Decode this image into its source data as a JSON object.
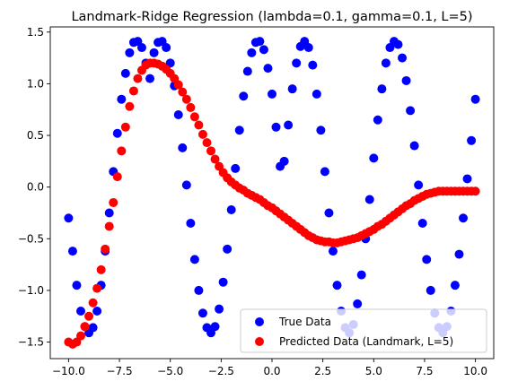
{
  "chart_data": {
    "type": "scatter",
    "title": "Landmark-Ridge Regression (lambda=0.1, gamma=0.1, L=5)",
    "xlabel": "",
    "ylabel": "",
    "xlim": [
      -10.9,
      10.9
    ],
    "ylim": [
      -1.66,
      1.55
    ],
    "xticks": [
      -10.0,
      -7.5,
      -5.0,
      -2.5,
      0.0,
      2.5,
      5.0,
      7.5,
      10.0
    ],
    "xtick_labels": [
      "−10.0",
      "−7.5",
      "−5.0",
      "−2.5",
      "0.0",
      "2.5",
      "5.0",
      "7.5",
      "10.0"
    ],
    "yticks": [
      -1.5,
      -1.0,
      -0.5,
      0.0,
      0.5,
      1.0,
      1.5
    ],
    "ytick_labels": [
      "−1.5",
      "−1.0",
      "−0.5",
      "0.0",
      "0.5",
      "1.0",
      "1.5"
    ],
    "grid": false,
    "legend_position": "lower-right",
    "series": [
      {
        "name": "True Data",
        "color": "#0000ff",
        "x": [
          -10.0,
          -9.8,
          -9.6,
          -9.4,
          -9.2,
          -9.0,
          -8.8,
          -8.6,
          -8.4,
          -8.2,
          -8.0,
          -7.8,
          -7.6,
          -7.4,
          -7.2,
          -7.0,
          -6.8,
          -6.6,
          -6.4,
          -6.2,
          -6.0,
          -5.8,
          -5.6,
          -5.4,
          -5.2,
          -5.0,
          -4.8,
          -4.6,
          -4.4,
          -4.2,
          -4.0,
          -3.8,
          -3.6,
          -3.4,
          -3.2,
          -3.0,
          -2.8,
          -2.6,
          -2.4,
          -2.2,
          -2.0,
          -1.8,
          -1.6,
          -1.4,
          -1.2,
          -1.0,
          -0.8,
          -0.6,
          -0.4,
          -0.2,
          0.0,
          0.2,
          0.4,
          0.6,
          0.8,
          1.0,
          1.2,
          1.4,
          1.6,
          1.8,
          2.0,
          2.2,
          2.4,
          2.6,
          2.8,
          3.0,
          3.2,
          3.4,
          3.6,
          3.8,
          4.0,
          4.2,
          4.4,
          4.6,
          4.8,
          5.0,
          5.2,
          5.4,
          5.6,
          5.8,
          6.0,
          6.2,
          6.4,
          6.6,
          6.8,
          7.0,
          7.2,
          7.4,
          7.6,
          7.8,
          8.0,
          8.2,
          8.4,
          8.6,
          8.8,
          9.0,
          9.2,
          9.4,
          9.6,
          9.8,
          10.0
        ],
        "y": [
          -0.3,
          -0.62,
          -0.95,
          -1.2,
          -1.35,
          -1.41,
          -1.36,
          -1.2,
          -0.95,
          -0.62,
          -0.25,
          0.15,
          0.52,
          0.85,
          1.1,
          1.3,
          1.4,
          1.41,
          1.35,
          1.2,
          1.05,
          1.3,
          1.4,
          1.41,
          1.35,
          1.2,
          0.98,
          0.7,
          0.38,
          0.02,
          -0.35,
          -0.7,
          -1.0,
          -1.22,
          -1.36,
          -1.41,
          -1.35,
          -1.18,
          -0.92,
          -0.6,
          -0.22,
          0.18,
          0.55,
          0.88,
          1.12,
          1.3,
          1.4,
          1.41,
          1.33,
          1.15,
          0.9,
          0.58,
          0.2,
          0.25,
          0.6,
          0.95,
          1.2,
          1.36,
          1.41,
          1.35,
          1.18,
          0.9,
          0.55,
          0.15,
          -0.25,
          -0.62,
          -0.95,
          -1.2,
          -1.36,
          -1.41,
          -1.33,
          -1.13,
          -0.85,
          -0.5,
          -0.12,
          0.28,
          0.65,
          0.95,
          1.2,
          1.35,
          1.41,
          1.38,
          1.25,
          1.03,
          0.74,
          0.4,
          0.02,
          -0.35,
          -0.7,
          -1.0,
          -1.22,
          -1.36,
          -1.41,
          -1.35,
          -1.2,
          -0.95,
          -0.65,
          -0.3,
          0.08,
          0.45,
          0.85
        ]
      },
      {
        "name": "Predicted Data (Landmark, L=5)",
        "color": "#ff0000",
        "x": [
          -10.0,
          -9.8,
          -9.6,
          -9.4,
          -9.2,
          -9.0,
          -8.8,
          -8.6,
          -8.4,
          -8.2,
          -8.0,
          -7.8,
          -7.6,
          -7.4,
          -7.2,
          -7.0,
          -6.8,
          -6.6,
          -6.4,
          -6.2,
          -6.0,
          -5.8,
          -5.6,
          -5.4,
          -5.2,
          -5.0,
          -4.8,
          -4.6,
          -4.4,
          -4.2,
          -4.0,
          -3.8,
          -3.6,
          -3.4,
          -3.2,
          -3.0,
          -2.8,
          -2.6,
          -2.4,
          -2.2,
          -2.0,
          -1.8,
          -1.6,
          -1.4,
          -1.2,
          -1.0,
          -0.8,
          -0.6,
          -0.4,
          -0.2,
          0.0,
          0.2,
          0.4,
          0.6,
          0.8,
          1.0,
          1.2,
          1.4,
          1.6,
          1.8,
          2.0,
          2.2,
          2.4,
          2.6,
          2.8,
          3.0,
          3.2,
          3.4,
          3.6,
          3.8,
          4.0,
          4.2,
          4.4,
          4.6,
          4.8,
          5.0,
          5.2,
          5.4,
          5.6,
          5.8,
          6.0,
          6.2,
          6.4,
          6.6,
          6.8,
          7.0,
          7.2,
          7.4,
          7.6,
          7.8,
          8.0,
          8.2,
          8.4,
          8.6,
          8.8,
          9.0,
          9.2,
          9.4,
          9.6,
          9.8,
          10.0
        ],
        "y": [
          -1.5,
          -1.52,
          -1.5,
          -1.44,
          -1.35,
          -1.25,
          -1.12,
          -0.98,
          -0.8,
          -0.6,
          -0.38,
          -0.15,
          0.1,
          0.35,
          0.58,
          0.78,
          0.93,
          1.05,
          1.13,
          1.18,
          1.2,
          1.2,
          1.19,
          1.17,
          1.14,
          1.1,
          1.05,
          0.99,
          0.92,
          0.85,
          0.77,
          0.68,
          0.6,
          0.51,
          0.43,
          0.35,
          0.27,
          0.2,
          0.14,
          0.09,
          0.05,
          0.02,
          -0.01,
          -0.03,
          -0.06,
          -0.08,
          -0.1,
          -0.12,
          -0.15,
          -0.18,
          -0.2,
          -0.23,
          -0.26,
          -0.29,
          -0.32,
          -0.35,
          -0.38,
          -0.41,
          -0.44,
          -0.47,
          -0.49,
          -0.51,
          -0.52,
          -0.53,
          -0.53,
          -0.54,
          -0.54,
          -0.53,
          -0.52,
          -0.51,
          -0.5,
          -0.49,
          -0.47,
          -0.45,
          -0.43,
          -0.41,
          -0.38,
          -0.36,
          -0.33,
          -0.3,
          -0.27,
          -0.24,
          -0.21,
          -0.18,
          -0.16,
          -0.13,
          -0.11,
          -0.09,
          -0.07,
          -0.06,
          -0.05,
          -0.04,
          -0.04,
          -0.04,
          -0.04,
          -0.04,
          -0.04,
          -0.04,
          -0.04,
          -0.04,
          -0.04
        ]
      }
    ]
  }
}
